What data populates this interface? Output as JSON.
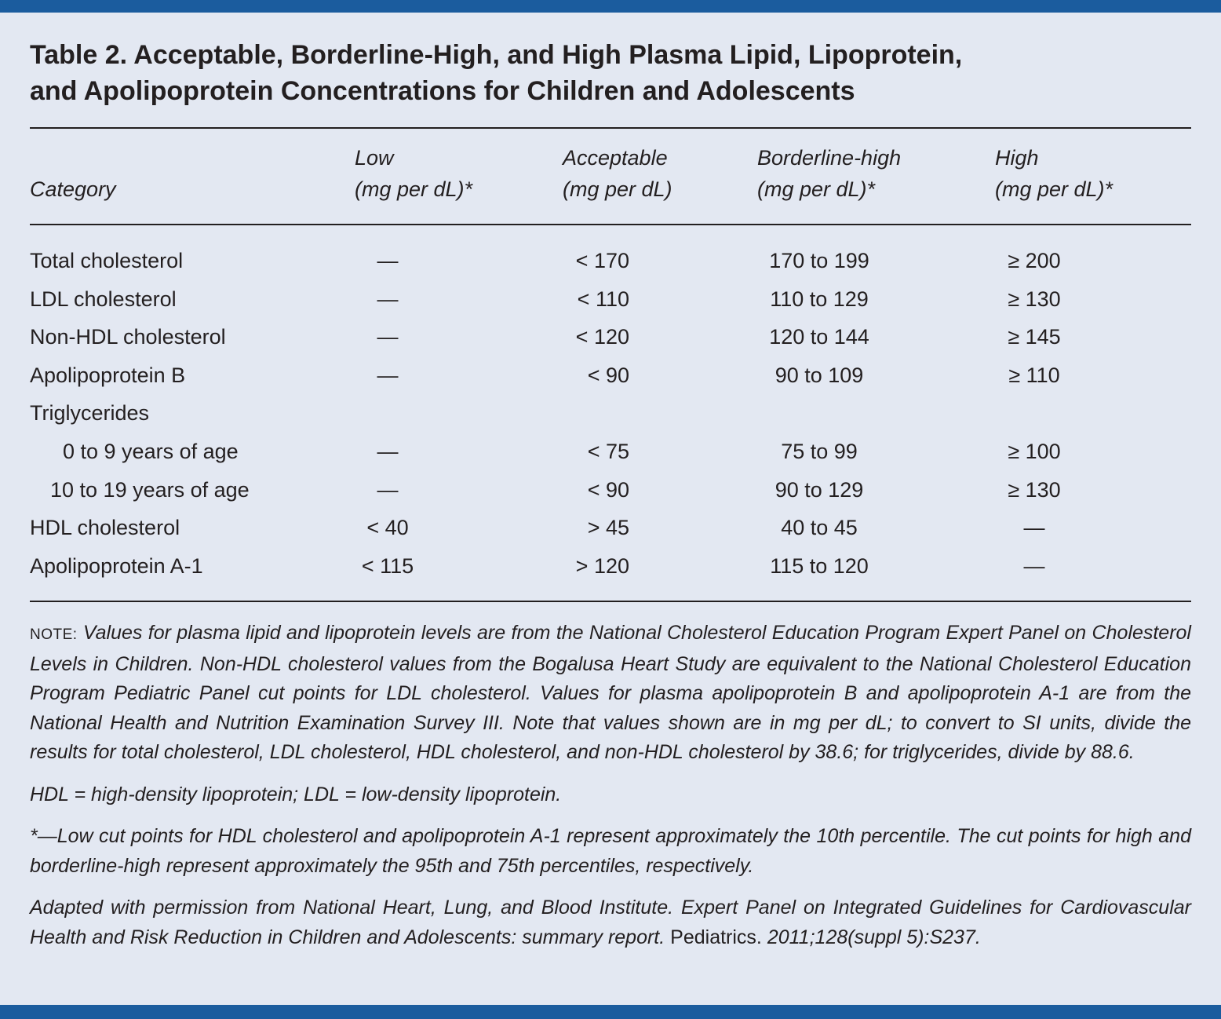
{
  "title": [
    "Table 2. Acceptable, Borderline-High, and High Plasma Lipid, Lipoprotein,",
    "and Apolipoprotein Concentrations for Children and Adolescents"
  ],
  "table": {
    "header": [
      [
        "Category"
      ],
      [
        "Low",
        "(mg per dL)*"
      ],
      [
        "Acceptable",
        "(mg per dL)"
      ],
      [
        "Borderline-high",
        "(mg per dL)*"
      ],
      [
        "High",
        "(mg per dL)*"
      ]
    ],
    "rows": [
      [
        "Total cholesterol",
        "—",
        "< 170",
        "170 to 199",
        "≥ 200"
      ],
      [
        "LDL cholesterol",
        "—",
        "< 110",
        "110 to 129",
        "≥ 130"
      ],
      [
        "Non-HDL cholesterol",
        "—",
        "< 120",
        "120 to 144",
        "≥ 145"
      ],
      [
        "Apolipoprotein B",
        "—",
        "< 90",
        "90 to 109",
        "≥ 110"
      ],
      [
        "Triglycerides"
      ],
      [
        "0 to 9 years of age",
        "—",
        "< 75",
        "75 to 99",
        "≥ 100"
      ],
      [
        "10 to 19 years of age",
        "—",
        "< 90",
        "90 to 129",
        "≥ 130"
      ],
      [
        "HDL cholesterol",
        "< 40",
        "> 45",
        "40 to 45",
        "—"
      ],
      [
        "Apolipoprotein A-1",
        "< 115",
        "> 120",
        "115 to 120",
        "—"
      ]
    ]
  },
  "notes": [
    {
      "label": "NOTE:",
      "text": "Values for plasma lipid and lipoprotein levels are from the National Cholesterol Education Program Expert Panel on Cholesterol Levels in Children. Non-HDL cholesterol values from the Bogalusa Heart Study are equivalent to the National Cholesterol Education Program Pediatric Panel cut points for LDL cholesterol. Values for plasma apolipoprotein B and apolipoprotein A-1 are from the National Health and Nutrition Examination Survey III. Note that values shown are in mg per dL; to convert to SI units, divide the results for total cholesterol, LDL cholesterol, HDL cholesterol, and non-HDL cholesterol by 38.6; for triglycerides, divide by 88.6."
    },
    {
      "text": "HDL = high-density lipoprotein; LDL = low-density lipoprotein."
    },
    {
      "text": "*—Low cut points for HDL cholesterol and apolipoprotein A-1 represent approximately the 10th percentile. The cut points for high and borderline-high represent approximately the 95th and 75th percentiles, respectively."
    },
    {
      "text": "Adapted with permission from National Heart, Lung, and Blood Institute. Expert Panel on Integrated Guidelines for Cardiovascular Health and Risk Reduction in Children and Adolescents: summary report.",
      "journal": "Pediatrics.",
      "citation": "2011;128(suppl 5):S237."
    }
  ]
}
